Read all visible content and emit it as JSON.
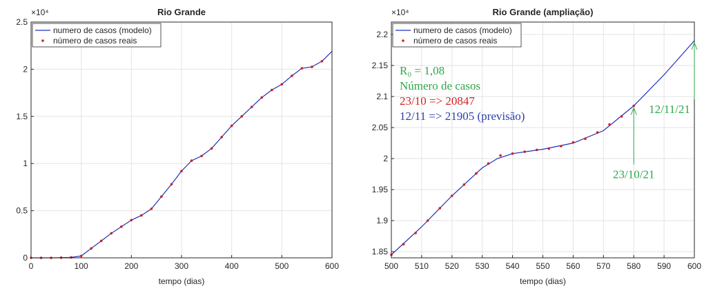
{
  "chart_data": [
    {
      "type": "line",
      "title": "Rio Grande",
      "xlabel": "tempo (dias)",
      "y_multiplier": "×10⁴",
      "xlim": [
        0,
        600
      ],
      "xticks": [
        0,
        100,
        200,
        300,
        400,
        500,
        600
      ],
      "ylim": [
        0,
        2.5
      ],
      "yticks": [
        0,
        0.5,
        1,
        1.5,
        2,
        2.5
      ],
      "grid": true,
      "legend": "upper left",
      "series": [
        {
          "name": "numero de casos (modelo)",
          "color": "#1f2fb8",
          "style": "line",
          "x": [
            0,
            20,
            40,
            60,
            80,
            100,
            120,
            140,
            160,
            180,
            200,
            220,
            240,
            260,
            280,
            300,
            320,
            340,
            360,
            380,
            400,
            420,
            440,
            460,
            480,
            500,
            520,
            540,
            560,
            580,
            600
          ],
          "values": [
            0,
            0,
            0,
            0.002,
            0.005,
            0.02,
            0.1,
            0.18,
            0.26,
            0.33,
            0.4,
            0.45,
            0.52,
            0.65,
            0.78,
            0.92,
            1.03,
            1.08,
            1.16,
            1.28,
            1.4,
            1.5,
            1.6,
            1.7,
            1.78,
            1.84,
            1.93,
            2.01,
            2.025,
            2.085,
            2.19
          ]
        },
        {
          "name": "número de casos reais",
          "color": "#cc1f1f",
          "style": "dots",
          "x": [
            0,
            20,
            40,
            60,
            80,
            100,
            120,
            140,
            160,
            180,
            200,
            220,
            240,
            260,
            280,
            300,
            320,
            340,
            360,
            380,
            400,
            420,
            440,
            460,
            480,
            500,
            520,
            540,
            560,
            580
          ],
          "values": [
            0,
            0,
            0,
            0.002,
            0.005,
            0.02,
            0.1,
            0.18,
            0.26,
            0.33,
            0.4,
            0.45,
            0.52,
            0.65,
            0.78,
            0.92,
            1.03,
            1.08,
            1.16,
            1.28,
            1.4,
            1.5,
            1.6,
            1.7,
            1.78,
            1.84,
            1.93,
            2.01,
            2.025,
            2.085
          ]
        }
      ]
    },
    {
      "type": "line",
      "title": "Rio Grande (ampliação)",
      "xlabel": "tempo (dias)",
      "y_multiplier": "×10⁴",
      "xlim": [
        500,
        600
      ],
      "xticks": [
        500,
        510,
        520,
        530,
        540,
        550,
        560,
        570,
        580,
        590,
        600
      ],
      "ylim": [
        1.84,
        2.22
      ],
      "yticks": [
        1.85,
        1.9,
        1.95,
        2,
        2.05,
        2.1,
        2.15,
        2.2
      ],
      "grid": true,
      "legend": "upper left",
      "series": [
        {
          "name": "numero de casos (modelo)",
          "color": "#1f2fb8",
          "style": "line",
          "x": [
            500,
            510,
            520,
            530,
            535,
            540,
            550,
            560,
            570,
            580,
            590,
            600
          ],
          "values": [
            1.845,
            1.89,
            1.94,
            1.985,
            2.0,
            2.008,
            2.015,
            2.025,
            2.045,
            2.085,
            2.135,
            2.19
          ]
        },
        {
          "name": "número de casos reais",
          "color": "#cc1f1f",
          "style": "dots",
          "x": [
            500,
            504,
            508,
            512,
            516,
            520,
            524,
            528,
            532,
            536,
            540,
            544,
            548,
            552,
            556,
            560,
            564,
            568,
            572,
            576,
            580
          ],
          "values": [
            1.845,
            1.862,
            1.88,
            1.9,
            1.92,
            1.94,
            1.958,
            1.976,
            1.992,
            2.005,
            2.008,
            2.011,
            2.014,
            2.016,
            2.02,
            2.026,
            2.032,
            2.042,
            2.055,
            2.068,
            2.085
          ]
        }
      ],
      "annotations": [
        {
          "text": "R₀ = 1,08",
          "color": "#2ca84a"
        },
        {
          "text": "Número de casos",
          "color": "#2ca84a"
        },
        {
          "text": "23/10 => 20847",
          "color": "#d42020"
        },
        {
          "text": "12/11 => 21905 (previsão)",
          "color": "#2e3ea8"
        }
      ],
      "arrows": [
        {
          "label": "23/10/21",
          "x": 580,
          "y": 2.085,
          "color": "#2ca84a"
        },
        {
          "label": "12/11/21",
          "x": 600,
          "y": 2.19,
          "color": "#2ca84a"
        }
      ]
    }
  ]
}
